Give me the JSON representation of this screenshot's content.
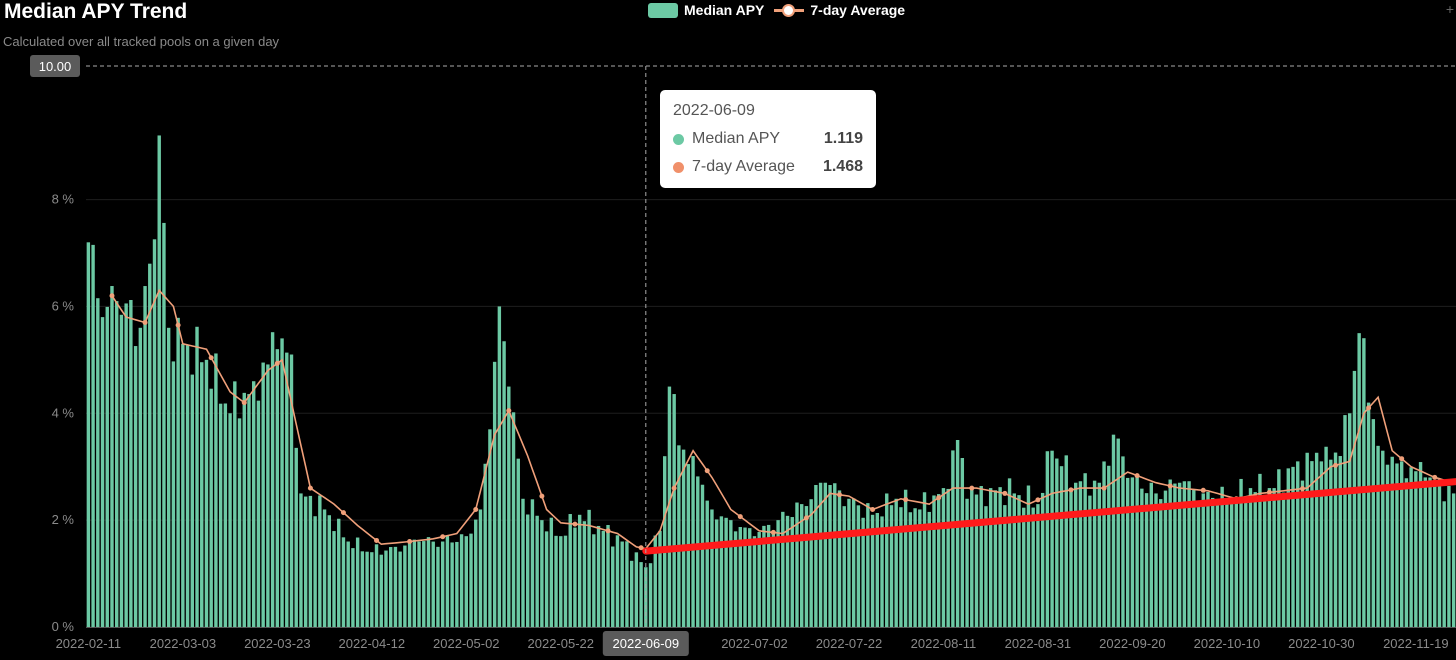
{
  "chart_data": {
    "type": "bar",
    "title": "Median APY Trend",
    "subtitle": "Calculated over all tracked pools on a given day",
    "y_ticks": [
      {
        "value": 0,
        "label": "0 %"
      },
      {
        "value": 2,
        "label": "2 %"
      },
      {
        "value": 4,
        "label": "4 %"
      },
      {
        "value": 6,
        "label": "6 %"
      },
      {
        "value": 8,
        "label": "8 %"
      }
    ],
    "ylim": [
      0,
      10.5
    ],
    "crosshair_y_label": "10.00",
    "crosshair_x_label": "2022-06-09",
    "x_ticks": [
      "2022-02-11",
      "2022-03-03",
      "2022-03-23",
      "2022-04-12",
      "2022-05-02",
      "2022-05-22",
      "2022-07-02",
      "2022-07-22",
      "2022-08-11",
      "2022-08-31",
      "2022-09-20",
      "2022-10-10",
      "2022-10-30",
      "2022-11-19"
    ],
    "legend": [
      {
        "name": "Median APY",
        "kind": "bar"
      },
      {
        "name": "7-day Average",
        "kind": "line"
      }
    ],
    "start_date": "2022-02-11",
    "end_date": "2022-11-27",
    "keypoints": [
      [
        "2022-02-11",
        7.2
      ],
      [
        "2022-02-14",
        5.8
      ],
      [
        "2022-02-17",
        6.1
      ],
      [
        "2022-02-22",
        5.6
      ],
      [
        "2022-02-24",
        6.8
      ],
      [
        "2022-02-26",
        9.2
      ],
      [
        "2022-02-28",
        5.6
      ],
      [
        "2022-03-03",
        5.3
      ],
      [
        "2022-03-08",
        5.0
      ],
      [
        "2022-03-13",
        4.0
      ],
      [
        "2022-03-18",
        4.6
      ],
      [
        "2022-03-23",
        5.2
      ],
      [
        "2022-03-26",
        5.1
      ],
      [
        "2022-03-28",
        2.5
      ],
      [
        "2022-04-02",
        2.2
      ],
      [
        "2022-04-07",
        1.6
      ],
      [
        "2022-04-12",
        1.4
      ],
      [
        "2022-04-17",
        1.5
      ],
      [
        "2022-04-22",
        1.6
      ],
      [
        "2022-04-27",
        1.6
      ],
      [
        "2022-05-02",
        1.7
      ],
      [
        "2022-05-05",
        2.2
      ],
      [
        "2022-05-07",
        3.7
      ],
      [
        "2022-05-09",
        6.0
      ],
      [
        "2022-05-11",
        4.5
      ],
      [
        "2022-05-14",
        2.4
      ],
      [
        "2022-05-18",
        2.0
      ],
      [
        "2022-05-22",
        1.7
      ],
      [
        "2022-05-26",
        2.1
      ],
      [
        "2022-05-31",
        1.8
      ],
      [
        "2022-06-04",
        1.6
      ],
      [
        "2022-06-09",
        1.119
      ],
      [
        "2022-06-12",
        1.8
      ],
      [
        "2022-06-14",
        4.5
      ],
      [
        "2022-06-16",
        3.4
      ],
      [
        "2022-06-19",
        3.2
      ],
      [
        "2022-06-23",
        2.2
      ],
      [
        "2022-06-27",
        2.0
      ],
      [
        "2022-07-02",
        1.7
      ],
      [
        "2022-07-07",
        2.0
      ],
      [
        "2022-07-12",
        2.3
      ],
      [
        "2022-07-17",
        2.7
      ],
      [
        "2022-07-22",
        2.4
      ],
      [
        "2022-07-27",
        2.1
      ],
      [
        "2022-08-01",
        2.4
      ],
      [
        "2022-08-06",
        2.2
      ],
      [
        "2022-08-11",
        2.6
      ],
      [
        "2022-08-14",
        3.5
      ],
      [
        "2022-08-16",
        2.4
      ],
      [
        "2022-08-21",
        2.6
      ],
      [
        "2022-08-26",
        2.5
      ],
      [
        "2022-08-31",
        2.3
      ],
      [
        "2022-09-03",
        3.3
      ],
      [
        "2022-09-08",
        2.7
      ],
      [
        "2022-09-13",
        2.7
      ],
      [
        "2022-09-16",
        3.6
      ],
      [
        "2022-09-20",
        2.8
      ],
      [
        "2022-09-25",
        2.5
      ],
      [
        "2022-09-30",
        2.7
      ],
      [
        "2022-10-05",
        2.5
      ],
      [
        "2022-10-10",
        2.4
      ],
      [
        "2022-10-15",
        2.6
      ],
      [
        "2022-10-20",
        2.6
      ],
      [
        "2022-10-25",
        3.1
      ],
      [
        "2022-10-30",
        3.1
      ],
      [
        "2022-11-03",
        3.2
      ],
      [
        "2022-11-05",
        4.0
      ],
      [
        "2022-11-07",
        5.5
      ],
      [
        "2022-11-09",
        4.2
      ],
      [
        "2022-11-12",
        3.3
      ],
      [
        "2022-11-16",
        3.1
      ],
      [
        "2022-11-21",
        2.8
      ],
      [
        "2022-11-27",
        2.5
      ]
    ],
    "avg_keypoints": [
      [
        "2022-02-16",
        6.2
      ],
      [
        "2022-02-19",
        5.8
      ],
      [
        "2022-02-23",
        5.7
      ],
      [
        "2022-02-26",
        6.3
      ],
      [
        "2022-03-01",
        6.0
      ],
      [
        "2022-03-03",
        5.3
      ],
      [
        "2022-03-08",
        5.2
      ],
      [
        "2022-03-13",
        4.4
      ],
      [
        "2022-03-16",
        4.2
      ],
      [
        "2022-03-21",
        4.8
      ],
      [
        "2022-03-24",
        5.0
      ],
      [
        "2022-03-30",
        2.6
      ],
      [
        "2022-04-04",
        2.3
      ],
      [
        "2022-04-09",
        1.9
      ],
      [
        "2022-04-14",
        1.55
      ],
      [
        "2022-04-20",
        1.6
      ],
      [
        "2022-04-25",
        1.65
      ],
      [
        "2022-04-30",
        1.75
      ],
      [
        "2022-05-04",
        2.2
      ],
      [
        "2022-05-08",
        3.6
      ],
      [
        "2022-05-11",
        4.05
      ],
      [
        "2022-05-15",
        3.2
      ],
      [
        "2022-05-19",
        2.2
      ],
      [
        "2022-05-22",
        1.95
      ],
      [
        "2022-05-28",
        1.9
      ],
      [
        "2022-06-03",
        1.75
      ],
      [
        "2022-06-07",
        1.5
      ],
      [
        "2022-06-09",
        1.468
      ],
      [
        "2022-06-12",
        1.8
      ],
      [
        "2022-06-15",
        2.6
      ],
      [
        "2022-06-19",
        3.3
      ],
      [
        "2022-06-23",
        2.8
      ],
      [
        "2022-06-27",
        2.2
      ],
      [
        "2022-07-03",
        1.8
      ],
      [
        "2022-07-08",
        1.75
      ],
      [
        "2022-07-14",
        2.1
      ],
      [
        "2022-07-18",
        2.5
      ],
      [
        "2022-07-22",
        2.45
      ],
      [
        "2022-07-27",
        2.2
      ],
      [
        "2022-08-02",
        2.4
      ],
      [
        "2022-08-08",
        2.3
      ],
      [
        "2022-08-13",
        2.6
      ],
      [
        "2022-08-18",
        2.6
      ],
      [
        "2022-08-24",
        2.5
      ],
      [
        "2022-08-29",
        2.3
      ],
      [
        "2022-09-03",
        2.5
      ],
      [
        "2022-09-09",
        2.6
      ],
      [
        "2022-09-14",
        2.6
      ],
      [
        "2022-09-19",
        2.9
      ],
      [
        "2022-09-25",
        2.7
      ],
      [
        "2022-09-30",
        2.6
      ],
      [
        "2022-10-06",
        2.55
      ],
      [
        "2022-10-12",
        2.4
      ],
      [
        "2022-10-17",
        2.5
      ],
      [
        "2022-10-22",
        2.55
      ],
      [
        "2022-10-27",
        2.6
      ],
      [
        "2022-11-01",
        3.0
      ],
      [
        "2022-11-05",
        3.1
      ],
      [
        "2022-11-08",
        4.0
      ],
      [
        "2022-11-11",
        4.3
      ],
      [
        "2022-11-14",
        3.3
      ],
      [
        "2022-11-18",
        3.0
      ],
      [
        "2022-11-23",
        2.8
      ],
      [
        "2022-11-27",
        2.7
      ]
    ],
    "trend_line": {
      "from": [
        "2022-06-09",
        1.42
      ],
      "to": [
        "2022-11-27",
        2.72
      ],
      "color": "#ff1a1a"
    },
    "tooltip": {
      "date": "2022-06-09",
      "rows": [
        {
          "name": "Median APY",
          "value": "1.119",
          "color": "#6cc9a4"
        },
        {
          "name": "7-day Average",
          "value": "1.468",
          "color": "#f0906a"
        }
      ]
    },
    "colors": {
      "bar": "#6cc9a4",
      "line": "#f0a07a",
      "grid": "#1e1e1e",
      "crosshair": "#aaaaaa"
    }
  }
}
